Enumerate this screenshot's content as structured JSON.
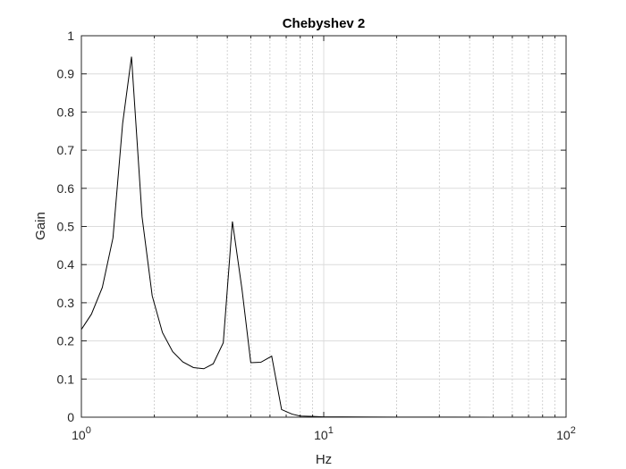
{
  "chart_data": {
    "type": "line",
    "title": "Chebyshev 2",
    "xlabel": "Hz",
    "ylabel": "Gain",
    "xscale": "log",
    "xlim": [
      1,
      100
    ],
    "ylim": [
      0,
      1
    ],
    "grid": true,
    "legend": "none",
    "line_color": "#000000",
    "x_ticks": [
      {
        "value": 1,
        "base": "10",
        "exp": "0"
      },
      {
        "value": 10,
        "base": "10",
        "exp": "1"
      },
      {
        "value": 100,
        "base": "10",
        "exp": "2"
      }
    ],
    "y_ticks": [
      {
        "value": 0,
        "label": "0"
      },
      {
        "value": 0.1,
        "label": "0.1"
      },
      {
        "value": 0.2,
        "label": "0.2"
      },
      {
        "value": 0.3,
        "label": "0.3"
      },
      {
        "value": 0.4,
        "label": "0.4"
      },
      {
        "value": 0.5,
        "label": "0.5"
      },
      {
        "value": 0.6,
        "label": "0.6"
      },
      {
        "value": 0.7,
        "label": "0.7"
      },
      {
        "value": 0.8,
        "label": "0.8"
      },
      {
        "value": 0.9,
        "label": "0.9"
      },
      {
        "value": 1,
        "label": "1"
      }
    ],
    "series": [
      {
        "x": [
          1.0,
          1.1,
          1.22,
          1.35,
          1.48,
          1.61,
          1.78,
          1.96,
          2.16,
          2.38,
          2.62,
          2.9,
          3.2,
          3.5,
          3.85,
          4.2,
          4.6,
          5.0,
          5.5,
          6.1,
          6.7,
          7.4,
          8.0,
          9.0,
          10.0,
          12.0,
          15.0,
          20.0,
          30.0,
          50.0,
          75.0,
          100.0
        ],
        "y": [
          0.23,
          0.27,
          0.34,
          0.47,
          0.77,
          0.945,
          0.525,
          0.318,
          0.222,
          0.172,
          0.145,
          0.13,
          0.127,
          0.14,
          0.195,
          0.513,
          0.335,
          0.143,
          0.144,
          0.16,
          0.02,
          0.008,
          0.003,
          0.002,
          0.001,
          0.001,
          0.0005,
          0.0003,
          0.0002,
          0.0001,
          0.0001,
          0.0001
        ]
      }
    ]
  }
}
